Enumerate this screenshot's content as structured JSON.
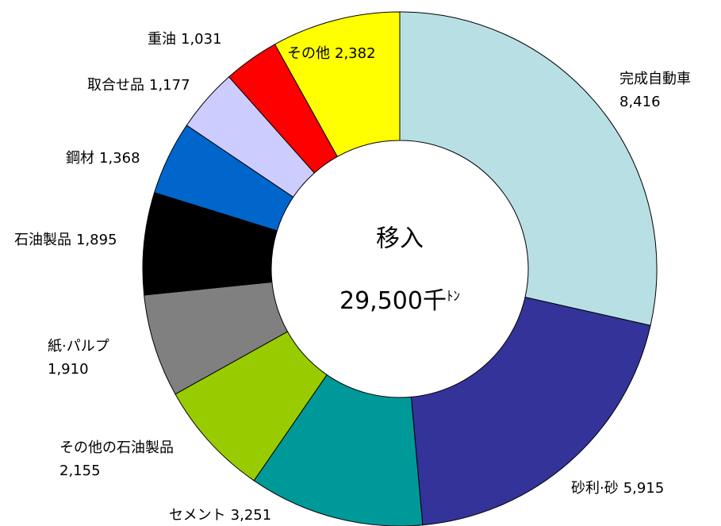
{
  "chart_data": {
    "type": "donut",
    "center_title": "移入",
    "total_label": "29,500千",
    "total_unit": "ﾄﾝ",
    "categories": [
      "完成自動車",
      "砂利·砂",
      "セメント",
      "その他の石油製品",
      "紙·パルプ",
      "石油製品",
      "鋼材",
      "取合せ品",
      "重油",
      "その他"
    ],
    "values": [
      8416,
      5915,
      3251,
      2155,
      1910,
      1895,
      1368,
      1177,
      1031,
      2382
    ],
    "value_labels": [
      "8,416",
      "5,915",
      "3,251",
      "2,155",
      "1,910",
      "1,895",
      "1,368",
      "1,177",
      "1,031",
      "2,382"
    ],
    "colors": [
      "#b8e0e4",
      "#333399",
      "#009999",
      "#99cc00",
      "#808080",
      "#000000",
      "#0066cc",
      "#ccccff",
      "#ff0000",
      "#ffff00"
    ]
  }
}
